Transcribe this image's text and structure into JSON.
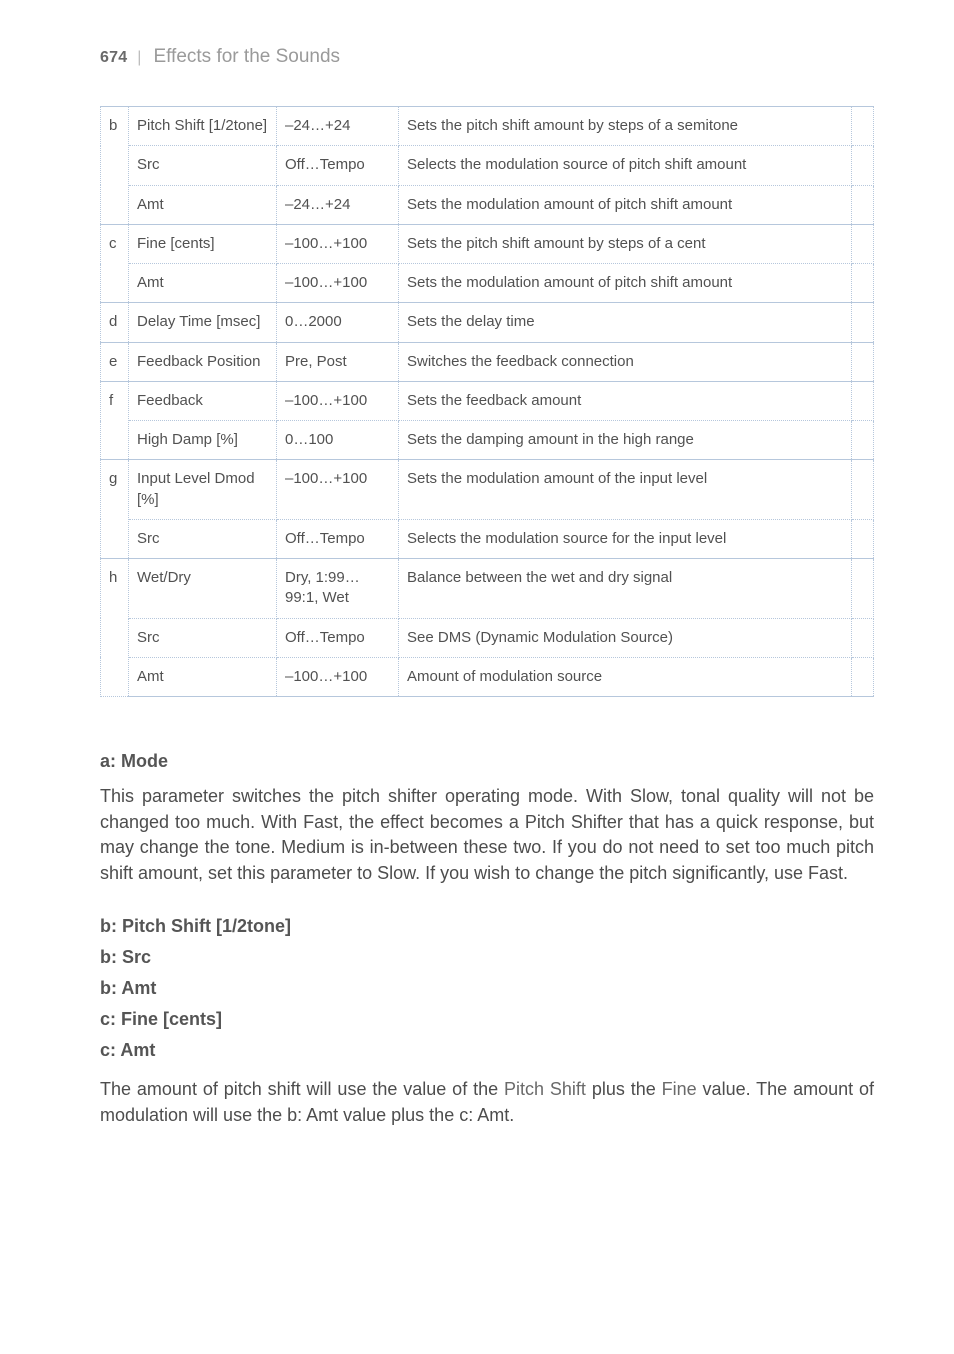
{
  "header": {
    "page_number": "674",
    "pipe": "|",
    "section": "Effects for the Sounds"
  },
  "table": {
    "rows": [
      {
        "id": "b",
        "first": true,
        "name": "Pitch Shift [1/2tone]",
        "range": "–24…+24",
        "desc": "Sets the pitch shift amount by steps of a semi­tone"
      },
      {
        "id": "b",
        "first": false,
        "name": "Src",
        "range": "Off…Tempo",
        "desc": "Selects the modulation source of pitch shift amount"
      },
      {
        "id": "b",
        "first": false,
        "name": "Amt",
        "range": "–24…+24",
        "desc": "Sets the modulation amount of pitch shift amount"
      },
      {
        "id": "c",
        "first": true,
        "name": "Fine [cents]",
        "range": "–100…+100",
        "desc": "Sets the pitch shift amount by steps of a cent"
      },
      {
        "id": "c",
        "first": false,
        "name": "Amt",
        "range": "–100…+100",
        "desc": "Sets the modulation amount of pitch shift amount"
      },
      {
        "id": "d",
        "first": true,
        "name": "Delay Time [msec]",
        "range": "0…2000",
        "desc": "Sets the delay time"
      },
      {
        "id": "e",
        "first": true,
        "name": "Feedback Position",
        "range": "Pre, Post",
        "desc": "Switches the feedback connection"
      },
      {
        "id": "f",
        "first": true,
        "name": "Feedback",
        "range": "–100…+100",
        "desc": "Sets the feedback amount"
      },
      {
        "id": "f",
        "first": false,
        "name": "High Damp [%]",
        "range": "0…100",
        "desc": "Sets the damping amount in the high range"
      },
      {
        "id": "g",
        "first": true,
        "name": "Input Level Dmod [%]",
        "range": "–100…+100",
        "desc": "Sets the modulation amount of the input level"
      },
      {
        "id": "g",
        "first": false,
        "name": "Src",
        "range": "Off…Tempo",
        "desc": "Selects the modulation source for the input level"
      },
      {
        "id": "h",
        "first": true,
        "name": "Wet/Dry",
        "range": "Dry, 1:99…99:1, Wet",
        "desc": "Balance between the wet and dry signal"
      },
      {
        "id": "h",
        "first": false,
        "name": "Src",
        "range": "Off…Tempo",
        "desc": "See DMS (Dynamic Modulation Source)"
      },
      {
        "id": "h",
        "first": false,
        "name": "Amt",
        "range": "–100…+100",
        "desc": "Amount of modulation source"
      }
    ]
  },
  "sections": {
    "a_mode": {
      "heading": "a: Mode",
      "body": "This parameter switches the pitch shifter operating mode. With Slow, tonal quality will not be changed too much. With Fast, the effect becomes a Pitch Shifter that has a quick response, but may change the tone. Medium is in-between these two. If you do not need to set too much pitch shift amount, set this parameter to Slow. If you wish to change the pitch significantly, use Fast."
    },
    "sub_headings": [
      "b: Pitch Shift [1/2tone]",
      "b: Src",
      "b: Amt",
      "c: Fine [cents]",
      "c: Amt"
    ],
    "tail_para_parts": {
      "p1": "The amount of pitch shift will use the value of the ",
      "s1": "Pitch Shift",
      "p2": " plus the ",
      "s2": "Fine",
      "p3": " value. The amount of modulation will use the b: Amt value plus the c: Amt."
    }
  }
}
